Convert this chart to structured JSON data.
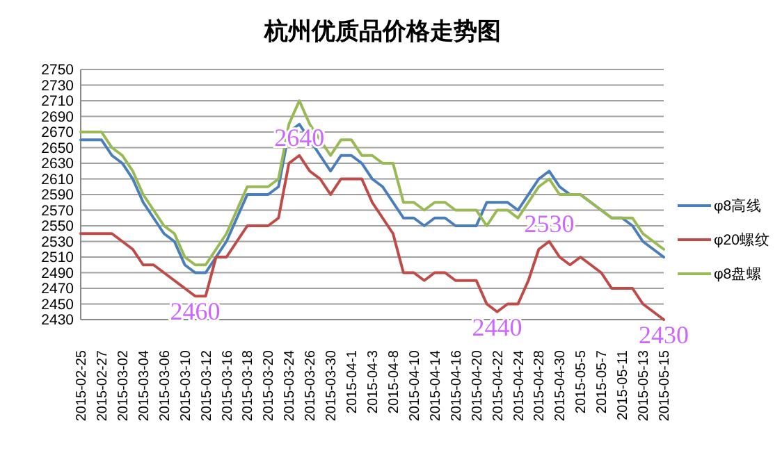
{
  "chart_data": {
    "type": "line",
    "title": "杭州优质品价格走势图",
    "categories": [
      "2015-02-25",
      null,
      "2015-02-27",
      null,
      "2015-03-02",
      null,
      "2015-03-04",
      null,
      "2015-03-06",
      null,
      "2015-03-10",
      null,
      "2015-03-12",
      null,
      "2015-03-16",
      null,
      "2015-03-18",
      null,
      "2015-03-20",
      null,
      "2015-03-24",
      null,
      "2015-03-26",
      null,
      "2015-03-30",
      null,
      "2015-04-1",
      null,
      "2015-04-3",
      null,
      "2015-04-8",
      null,
      "2015-04-10",
      null,
      "2015-04-14",
      null,
      "2015-04-16",
      null,
      "2015-04-20",
      null,
      "2015-04-22",
      null,
      "2015-04-24",
      null,
      "2015-04-28",
      null,
      "2015-04-30",
      null,
      "2015-05-5",
      null,
      "2015-05-7",
      null,
      "2015-05-11",
      null,
      "2015-05-13",
      null,
      "2015-05-15"
    ],
    "series": [
      {
        "name": "φ8高线",
        "color": "#4a7ebb",
        "values": [
          2660,
          2660,
          2660,
          2640,
          2630,
          2610,
          2580,
          2560,
          2540,
          2530,
          2500,
          2490,
          2490,
          2510,
          2530,
          2560,
          2590,
          2590,
          2590,
          2600,
          2670,
          2680,
          2660,
          2640,
          2620,
          2640,
          2640,
          2630,
          2610,
          2600,
          2580,
          2560,
          2560,
          2550,
          2560,
          2560,
          2550,
          2550,
          2550,
          2580,
          2580,
          2580,
          2570,
          2590,
          2610,
          2620,
          2600,
          2590,
          2590,
          2580,
          2570,
          2560,
          2560,
          2550,
          2530,
          2520,
          2510
        ]
      },
      {
        "name": "φ20螺纹",
        "color": "#be4b48",
        "values": [
          2540,
          2540,
          2540,
          2540,
          2530,
          2520,
          2500,
          2500,
          2490,
          2480,
          2470,
          2460,
          2460,
          2510,
          2510,
          2530,
          2550,
          2550,
          2550,
          2560,
          2630,
          2640,
          2620,
          2610,
          2590,
          2610,
          2610,
          2610,
          2580,
          2560,
          2540,
          2490,
          2490,
          2480,
          2490,
          2490,
          2480,
          2480,
          2480,
          2450,
          2440,
          2450,
          2450,
          2480,
          2520,
          2530,
          2510,
          2500,
          2510,
          2500,
          2490,
          2470,
          2470,
          2470,
          2450,
          2440,
          2430
        ],
        "value_labels": [
          null,
          null,
          null,
          null,
          null,
          null,
          null,
          null,
          null,
          null,
          null,
          "2460",
          null,
          null,
          null,
          null,
          null,
          null,
          null,
          null,
          null,
          "2640",
          null,
          null,
          null,
          null,
          null,
          null,
          null,
          null,
          null,
          null,
          null,
          null,
          null,
          null,
          null,
          null,
          null,
          null,
          "2440",
          null,
          null,
          null,
          null,
          "2530",
          null,
          null,
          null,
          null,
          null,
          null,
          null,
          null,
          null,
          null,
          "2430"
        ]
      },
      {
        "name": "φ8盘螺",
        "color": "#98b954",
        "values": [
          2670,
          2670,
          2670,
          2650,
          2640,
          2620,
          2590,
          2570,
          2550,
          2540,
          2510,
          2500,
          2500,
          2520,
          2540,
          2570,
          2600,
          2600,
          2600,
          2610,
          2680,
          2710,
          2680,
          2660,
          2640,
          2660,
          2660,
          2640,
          2640,
          2630,
          2630,
          2580,
          2580,
          2570,
          2580,
          2580,
          2570,
          2570,
          2570,
          2550,
          2570,
          2570,
          2560,
          2580,
          2600,
          2610,
          2590,
          2590,
          2590,
          2580,
          2570,
          2560,
          2560,
          2560,
          2540,
          2530,
          2520
        ]
      }
    ],
    "ylim": [
      2430,
      2750
    ],
    "yticks": [
      2430,
      2450,
      2470,
      2490,
      2510,
      2530,
      2550,
      2570,
      2590,
      2610,
      2630,
      2650,
      2670,
      2690,
      2710,
      2730,
      2750
    ],
    "grid": "y",
    "legend": "right",
    "marker": "none",
    "line_style": "solid"
  }
}
